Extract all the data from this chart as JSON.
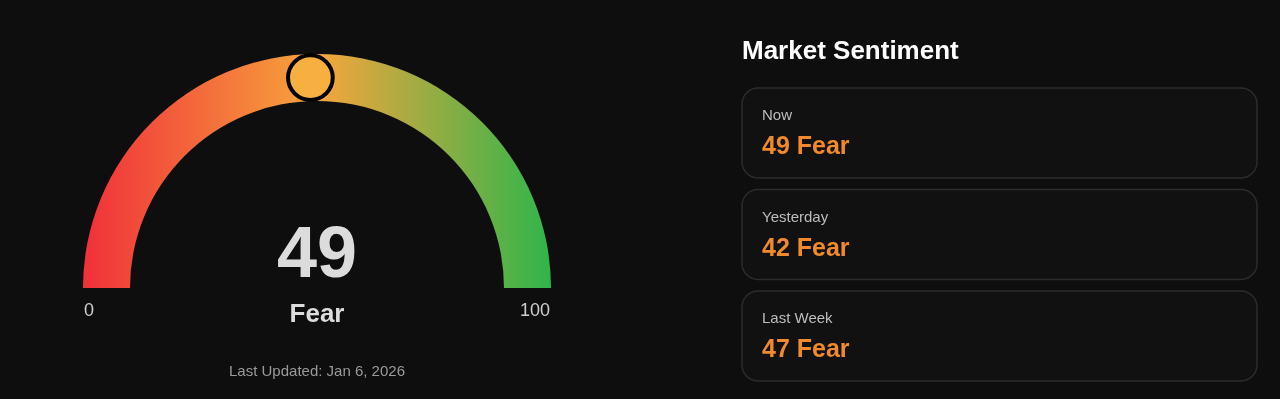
{
  "chart_data": [
    {
      "type": "other",
      "categories": [
        "Fear"
      ],
      "values": [
        49
      ],
      "data_labels": true,
      "annotations": [
        "0",
        "100",
        "Last Updated:  Jan 6, 2026"
      ]
    },
    {
      "type": "other",
      "title": "Market Sentiment",
      "annotations": [
        "Now",
        "49 Fear",
        "Yesterday",
        "42 Fear",
        "Last Week",
        "47 Fear"
      ]
    }
  ]
}
